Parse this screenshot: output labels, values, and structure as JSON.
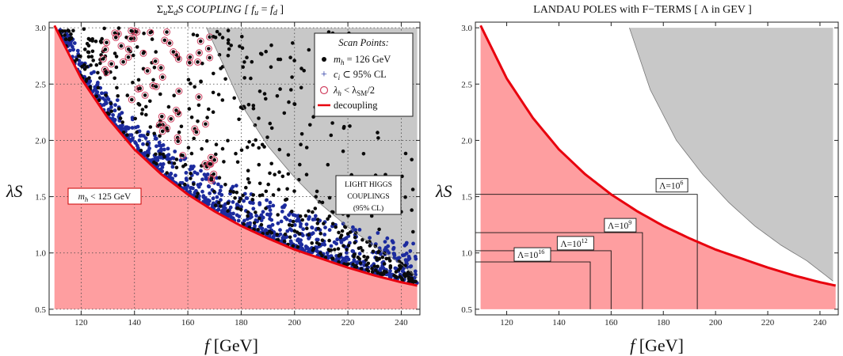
{
  "colors": {
    "excluded_fill": "#fe9ea0",
    "grey_fill": "#c8c8c8",
    "decoupling": "#e8000d",
    "blue_points": "#1c2b9e",
    "black_points": "#0a0a0a",
    "circle_marker": "#d04060"
  },
  "chart_data": [
    {
      "type": "scatter",
      "title": "ΣuΣdS COUPLING  [ fu = fd ]",
      "title_parts": {
        "pre": "Σ",
        "s1": "u",
        "mid": "Σ",
        "s2": "d",
        "post": "S COUPLING  [ ",
        "f1": "f",
        "s3": "u",
        "eq": " = ",
        "f2": "f",
        "s4": "d",
        "close": " ]"
      },
      "xlabel": "f [GeV]",
      "xlabel_parts": {
        "var": "f",
        "unit": " [GeV]"
      },
      "ylabel": "λS",
      "xlim": [
        108,
        247
      ],
      "ylim": [
        0.45,
        3.05
      ],
      "xticks": [
        120,
        140,
        160,
        180,
        200,
        220,
        240
      ],
      "yticks": [
        0.5,
        1.0,
        1.5,
        2.0,
        2.5,
        3.0
      ],
      "ytick_labels": [
        "0.5",
        "1.0",
        "1.5",
        "2.0",
        "2.5",
        "3.0"
      ],
      "grid": true,
      "decoupling_curve": {
        "x": [
          110,
          120,
          130,
          140,
          150,
          160,
          170,
          180,
          190,
          200,
          210,
          220,
          230,
          240,
          246
        ],
        "y": [
          3.02,
          2.55,
          2.2,
          1.92,
          1.7,
          1.52,
          1.37,
          1.24,
          1.13,
          1.03,
          0.95,
          0.87,
          0.8,
          0.74,
          0.71
        ]
      },
      "light_higgs_boundary": {
        "x": [
          167,
          180,
          190,
          200,
          210,
          220,
          230,
          240,
          246
        ],
        "y": [
          3.0,
          2.32,
          1.95,
          1.67,
          1.43,
          1.23,
          1.06,
          0.9,
          0.78
        ]
      },
      "legend": {
        "position": "top-right",
        "title": "Scan Points:",
        "entries": [
          {
            "label": "mh = 126 GeV",
            "parts": [
              "m",
              "h",
              " = 126 GeV"
            ]
          },
          {
            "label": "ci ⊂ 95% CL",
            "parts": [
              "c",
              "i",
              " ⊂ 95% CL"
            ]
          },
          {
            "label": "λh < λSM/2",
            "parts": [
              "λ",
              "h",
              " < λ",
              "SM",
              "/2"
            ]
          },
          {
            "label": "decoupling",
            "parts": [
              "decoupling"
            ]
          }
        ]
      },
      "annotations": [
        {
          "label": "mh < 125 GeV",
          "parts": [
            "m",
            "h",
            " < 125 GeV"
          ]
        },
        {
          "label": "LIGHT HIGGS COUPLINGS (95% CL)",
          "lines": [
            "LIGHT HIGGS",
            "COUPLINGS",
            "(95% CL)"
          ]
        }
      ]
    },
    {
      "type": "line",
      "title": "LANDAU POLES with F−TERMS  [ Λ in GEV ]",
      "xlabel": "f [GeV]",
      "xlabel_parts": {
        "var": "f",
        "unit": " [GeV]"
      },
      "ylabel": "λS",
      "xlim": [
        108,
        247
      ],
      "ylim": [
        0.45,
        3.05
      ],
      "xticks": [
        120,
        140,
        160,
        180,
        200,
        220,
        240
      ],
      "yticks": [
        0.5,
        1.0,
        1.5,
        2.0,
        2.5,
        3.0
      ],
      "ytick_labels": [
        "0.5",
        "1.0",
        "1.5",
        "2.0",
        "2.5",
        "3.0"
      ],
      "grid": false,
      "decoupling_curve": {
        "x": [
          110,
          120,
          130,
          140,
          150,
          160,
          170,
          180,
          190,
          200,
          210,
          220,
          230,
          240,
          246
        ],
        "y": [
          3.02,
          2.55,
          2.2,
          1.92,
          1.7,
          1.52,
          1.37,
          1.24,
          1.13,
          1.03,
          0.95,
          0.87,
          0.8,
          0.74,
          0.71
        ]
      },
      "light_higgs_boundary": {
        "x": [
          167,
          175,
          185,
          195,
          205,
          215,
          225,
          235,
          245
        ],
        "y": [
          3.0,
          2.45,
          2.0,
          1.7,
          1.45,
          1.24,
          1.07,
          0.93,
          0.75
        ]
      },
      "landau_poles": [
        {
          "label": "Λ=10^6",
          "base": "Λ=10",
          "exp": "6",
          "f": 193,
          "lambda": 1.52
        },
        {
          "label": "Λ=10^9",
          "base": "Λ=10",
          "exp": "9",
          "f": 172,
          "lambda": 1.18
        },
        {
          "label": "Λ=10^12",
          "base": "Λ=10",
          "exp": "12",
          "f": 160,
          "lambda": 1.02
        },
        {
          "label": "Λ=10^16",
          "base": "Λ=10",
          "exp": "16",
          "f": 152,
          "lambda": 0.92
        }
      ]
    }
  ]
}
